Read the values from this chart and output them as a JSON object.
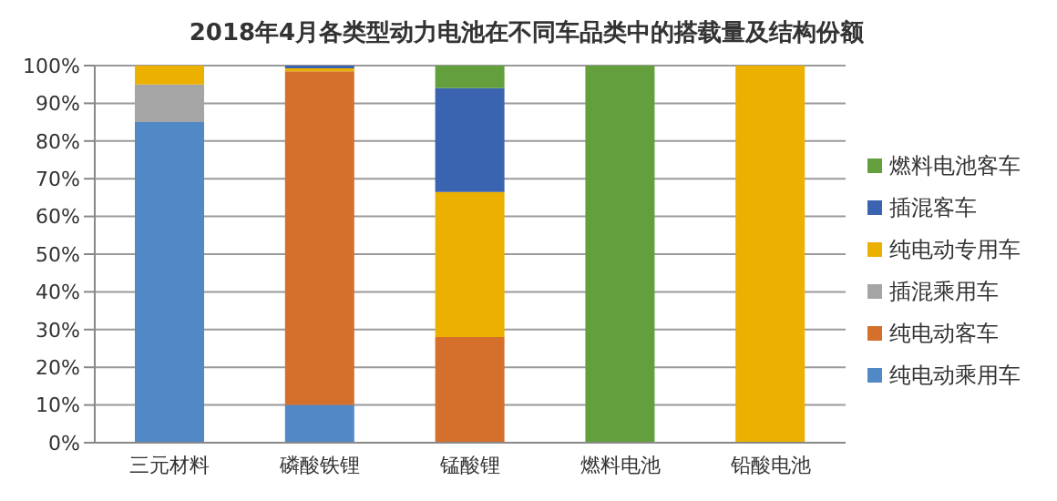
{
  "chart_data": {
    "type": "bar",
    "title": "2018年4月各类型动力电池在不同车品类中的搭载量及结构份额",
    "stacked": true,
    "categories": [
      "三元材料",
      "磷酸铁锂",
      "锰酸锂",
      "燃料电池",
      "铅酸电池"
    ],
    "series": [
      {
        "name": "纯电动乘用车",
        "color": "#5089c6",
        "values": [
          85,
          10,
          0,
          0,
          0
        ]
      },
      {
        "name": "纯电动客车",
        "color": "#d5702c",
        "values": [
          0,
          88.5,
          28,
          0,
          0
        ]
      },
      {
        "name": "插混乘用车",
        "color": "#a5a5a5",
        "values": [
          10,
          0,
          0,
          0,
          0
        ]
      },
      {
        "name": "纯电动专用车",
        "color": "#ebb000",
        "values": [
          5,
          0.8,
          38.5,
          0,
          100
        ]
      },
      {
        "name": "插混客车",
        "color": "#3a64b0",
        "values": [
          0,
          0.7,
          27.5,
          0,
          0
        ]
      },
      {
        "name": "燃料电池客车",
        "color": "#63a03d",
        "values": [
          0,
          0,
          6,
          100,
          0
        ]
      }
    ],
    "ylim": [
      0,
      100
    ],
    "yticks": [
      {
        "value": 0,
        "label": "0%"
      },
      {
        "value": 10,
        "label": "10%"
      },
      {
        "value": 20,
        "label": "20%"
      },
      {
        "value": 30,
        "label": "30%"
      },
      {
        "value": 40,
        "label": "40%"
      },
      {
        "value": 50,
        "label": "50%"
      },
      {
        "value": 60,
        "label": "60%"
      },
      {
        "value": 70,
        "label": "70%"
      },
      {
        "value": 80,
        "label": "80%"
      },
      {
        "value": 90,
        "label": "90%"
      },
      {
        "value": 100,
        "label": "100%"
      }
    ],
    "grid": "y",
    "legend": "right"
  }
}
